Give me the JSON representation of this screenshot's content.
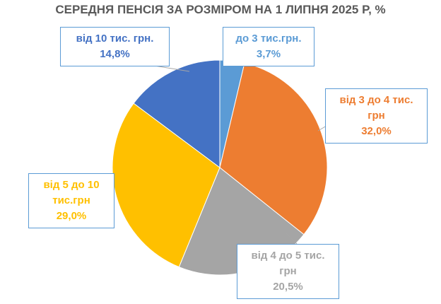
{
  "chart_data": {
    "type": "pie",
    "title": "СЕРЕДНЯ ПЕНСІЯ ЗА РОЗМІРОМ НА 1 ЛИПНЯ 2025 Р, %",
    "categories": [
      "до 3 тис.грн.",
      "від 3 до 4 тис. грн",
      "від 4 до 5 тис. грн",
      "від 5 до 10 тис.грн",
      "від 10 тис. грн."
    ],
    "values": [
      3.7,
      32.0,
      20.5,
      29.0,
      14.8
    ],
    "value_labels": [
      "3,7%",
      "32,0%",
      "20,5%",
      "29,0%",
      "14,8%"
    ],
    "colors": [
      "#5b9bd5",
      "#ed7d31",
      "#a5a5a5",
      "#ffc000",
      "#4472c4"
    ]
  }
}
